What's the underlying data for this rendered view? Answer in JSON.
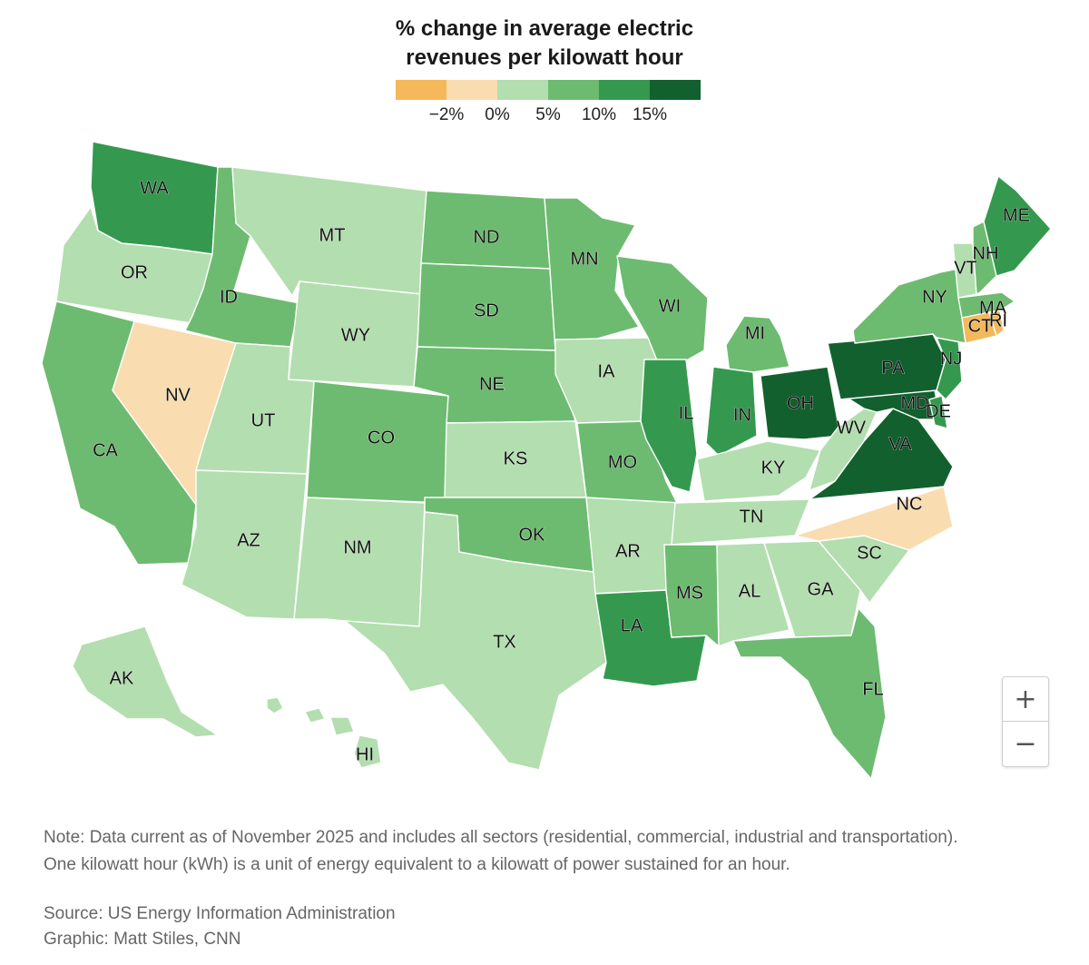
{
  "title_line1": "% change in average electric",
  "title_line2": "revenues per kilowatt hour",
  "legend": {
    "swatch_colors": [
      "#f5b85a",
      "#f9ddb0",
      "#b3deaf",
      "#6dbb70",
      "#34994f",
      "#12602e"
    ],
    "ticks": [
      "−2%",
      "0%",
      "5%",
      "10%",
      "15%"
    ]
  },
  "colors": {
    "light": "#b3deaf",
    "mid": "#6dbb70",
    "strong": "#34994f",
    "dark": "#12602e",
    "tan": "#f9ddb0",
    "orange": "#f5b85a"
  },
  "states": [
    {
      "id": "WA",
      "color": "#34994f"
    },
    {
      "id": "OR",
      "color": "#b3deaf"
    },
    {
      "id": "CA",
      "color": "#6dbb70"
    },
    {
      "id": "NV",
      "color": "#f9ddb0"
    },
    {
      "id": "ID",
      "color": "#6dbb70"
    },
    {
      "id": "MT",
      "color": "#b3deaf"
    },
    {
      "id": "WY",
      "color": "#b3deaf"
    },
    {
      "id": "UT",
      "color": "#b3deaf"
    },
    {
      "id": "AZ",
      "color": "#b3deaf"
    },
    {
      "id": "CO",
      "color": "#6dbb70"
    },
    {
      "id": "NM",
      "color": "#b3deaf"
    },
    {
      "id": "ND",
      "color": "#6dbb70"
    },
    {
      "id": "SD",
      "color": "#6dbb70"
    },
    {
      "id": "NE",
      "color": "#6dbb70"
    },
    {
      "id": "KS",
      "color": "#b3deaf"
    },
    {
      "id": "OK",
      "color": "#6dbb70"
    },
    {
      "id": "TX",
      "color": "#b3deaf"
    },
    {
      "id": "MN",
      "color": "#6dbb70"
    },
    {
      "id": "IA",
      "color": "#b3deaf"
    },
    {
      "id": "MO",
      "color": "#6dbb70"
    },
    {
      "id": "AR",
      "color": "#b3deaf"
    },
    {
      "id": "LA",
      "color": "#34994f"
    },
    {
      "id": "WI",
      "color": "#6dbb70"
    },
    {
      "id": "IL",
      "color": "#34994f"
    },
    {
      "id": "MI",
      "color": "#6dbb70"
    },
    {
      "id": "IN",
      "color": "#34994f"
    },
    {
      "id": "OH",
      "color": "#12602e"
    },
    {
      "id": "KY",
      "color": "#b3deaf"
    },
    {
      "id": "TN",
      "color": "#b3deaf"
    },
    {
      "id": "MS",
      "color": "#6dbb70"
    },
    {
      "id": "AL",
      "color": "#b3deaf"
    },
    {
      "id": "GA",
      "color": "#b3deaf"
    },
    {
      "id": "FL",
      "color": "#6dbb70"
    },
    {
      "id": "SC",
      "color": "#b3deaf"
    },
    {
      "id": "NC",
      "color": "#f9ddb0"
    },
    {
      "id": "VA",
      "color": "#12602e"
    },
    {
      "id": "WV",
      "color": "#b3deaf"
    },
    {
      "id": "MD",
      "color": "#12602e"
    },
    {
      "id": "DE",
      "color": "#34994f"
    },
    {
      "id": "PA",
      "color": "#12602e"
    },
    {
      "id": "NJ",
      "color": "#34994f"
    },
    {
      "id": "NY",
      "color": "#6dbb70"
    },
    {
      "id": "CT",
      "color": "#f5b85a"
    },
    {
      "id": "RI",
      "color": "#f5b85a"
    },
    {
      "id": "MA",
      "color": "#6dbb70"
    },
    {
      "id": "VT",
      "color": "#b3deaf"
    },
    {
      "id": "NH",
      "color": "#6dbb70"
    },
    {
      "id": "ME",
      "color": "#34994f"
    },
    {
      "id": "AK",
      "color": "#b3deaf"
    },
    {
      "id": "HI",
      "color": "#b3deaf"
    }
  ],
  "zoom": {
    "in": "+",
    "out": "−"
  },
  "note_line1": "Note: Data current as of November 2025 and includes all sectors (residential, commercial, industrial and transportation).",
  "note_line2": "One kilowatt hour (kWh) is a unit of energy equivalent to a kilowatt of power sustained for an hour.",
  "source": "Source: US Energy Information Administration",
  "credit": "Graphic: Matt Stiles, CNN"
}
